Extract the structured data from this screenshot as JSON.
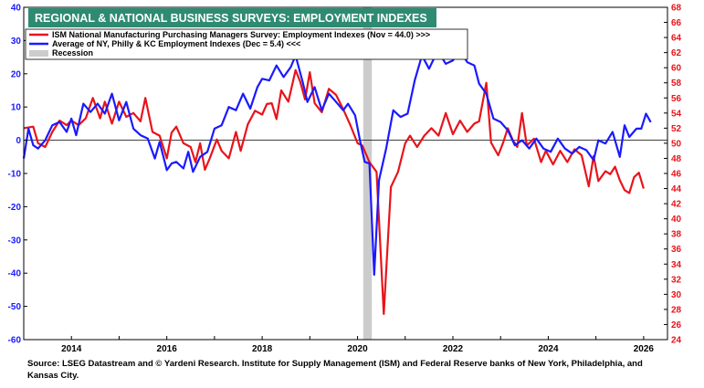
{
  "chart_data": {
    "type": "line",
    "title": "REGIONAL & NATIONAL BUSINESS SURVEYS: EMPLOYMENT INDEXES",
    "x_ticks": [
      "2014",
      "2016",
      "2018",
      "2020",
      "2022",
      "2024",
      "2026"
    ],
    "x_range": [
      2013.0,
      2026.5
    ],
    "left_axis": {
      "min": -60,
      "max": 40,
      "step": 10,
      "ticks": [
        "40",
        "30",
        "20",
        "10",
        "0",
        "-10",
        "-20",
        "-30",
        "-40",
        "-50",
        "-60"
      ],
      "color": "#1a1aff"
    },
    "right_axis": {
      "min": 24,
      "max": 68,
      "step": 2,
      "ticks": [
        "68",
        "66",
        "64",
        "62",
        "60",
        "58",
        "56",
        "54",
        "52",
        "50",
        "48",
        "46",
        "44",
        "42",
        "40",
        "38",
        "36",
        "34",
        "32",
        "30",
        "28",
        "26",
        "24"
      ],
      "color": "#e8141b"
    },
    "recession": {
      "label": "Recession",
      "start": 2020.12,
      "end": 2020.3,
      "color": "#cccccc"
    },
    "series": [
      {
        "name": "ISM National Manufacturing Purchasing Managers Survey: Employment Indexes (Nov = 44.0) >>>",
        "axis": "right",
        "color": "#e8141b",
        "points": [
          [
            2013.0,
            52
          ],
          [
            2013.2,
            52.2
          ],
          [
            2013.3,
            50
          ],
          [
            2013.45,
            49.5
          ],
          [
            2013.6,
            51.5
          ],
          [
            2013.75,
            53
          ],
          [
            2013.9,
            52.4
          ],
          [
            2014.0,
            53
          ],
          [
            2014.15,
            52.4
          ],
          [
            2014.3,
            53.3
          ],
          [
            2014.45,
            56
          ],
          [
            2014.6,
            53.3
          ],
          [
            2014.7,
            55.5
          ],
          [
            2014.85,
            52.6
          ],
          [
            2015.0,
            55.5
          ],
          [
            2015.15,
            53.5
          ],
          [
            2015.3,
            54
          ],
          [
            2015.45,
            52.9
          ],
          [
            2015.55,
            56
          ],
          [
            2015.7,
            51.5
          ],
          [
            2015.85,
            51
          ],
          [
            2016.0,
            48
          ],
          [
            2016.1,
            51.4
          ],
          [
            2016.2,
            52.2
          ],
          [
            2016.35,
            50
          ],
          [
            2016.5,
            49.5
          ],
          [
            2016.6,
            47.5
          ],
          [
            2016.7,
            50
          ],
          [
            2016.8,
            46.5
          ],
          [
            2016.9,
            48
          ],
          [
            2017.05,
            50.5
          ],
          [
            2017.15,
            49
          ],
          [
            2017.3,
            48
          ],
          [
            2017.45,
            51.5
          ],
          [
            2017.55,
            49
          ],
          [
            2017.7,
            52.5
          ],
          [
            2017.85,
            54.3
          ],
          [
            2018.0,
            53.8
          ],
          [
            2018.1,
            55.2
          ],
          [
            2018.2,
            55.3
          ],
          [
            2018.3,
            53.2
          ],
          [
            2018.4,
            57
          ],
          [
            2018.55,
            55.5
          ],
          [
            2018.7,
            59.7
          ],
          [
            2018.8,
            58.1
          ],
          [
            2018.9,
            55.8
          ],
          [
            2019.0,
            59.4
          ],
          [
            2019.1,
            55.3
          ],
          [
            2019.25,
            54.1
          ],
          [
            2019.4,
            57.2
          ],
          [
            2019.55,
            56.4
          ],
          [
            2019.7,
            54.5
          ],
          [
            2019.85,
            52.4
          ],
          [
            2020.0,
            50
          ],
          [
            2020.1,
            49.7
          ],
          [
            2020.25,
            47.5
          ],
          [
            2020.4,
            46.2
          ],
          [
            2020.55,
            27.4
          ],
          [
            2020.7,
            44.2
          ],
          [
            2020.85,
            46.2
          ],
          [
            2021.0,
            50
          ],
          [
            2021.1,
            51
          ],
          [
            2021.25,
            49.5
          ],
          [
            2021.4,
            51
          ],
          [
            2021.55,
            52
          ],
          [
            2021.7,
            51
          ],
          [
            2021.85,
            54
          ],
          [
            2022.0,
            51.2
          ],
          [
            2022.15,
            53
          ],
          [
            2022.3,
            51.5
          ],
          [
            2022.45,
            52.6
          ],
          [
            2022.55,
            52.9
          ],
          [
            2022.7,
            58
          ],
          [
            2022.8,
            50.1
          ],
          [
            2022.95,
            48.4
          ],
          [
            2023.05,
            50
          ],
          [
            2023.15,
            52
          ],
          [
            2023.25,
            50.5
          ],
          [
            2023.35,
            49.5
          ],
          [
            2023.45,
            54
          ],
          [
            2023.55,
            49.7
          ],
          [
            2023.7,
            50.6
          ],
          [
            2023.85,
            47.5
          ],
          [
            2023.95,
            49
          ],
          [
            2024.1,
            47.2
          ],
          [
            2024.25,
            49
          ],
          [
            2024.4,
            47.5
          ],
          [
            2024.55,
            49.2
          ],
          [
            2024.7,
            48.4
          ],
          [
            2024.85,
            44.3
          ],
          [
            2024.95,
            48.3
          ],
          [
            2025.05,
            45
          ],
          [
            2025.2,
            46.3
          ],
          [
            2025.3,
            45.9
          ],
          [
            2025.4,
            46.9
          ],
          [
            2025.5,
            45.1
          ],
          [
            2025.6,
            43.8
          ],
          [
            2025.7,
            43.4
          ],
          [
            2025.8,
            45.5
          ],
          [
            2025.9,
            46.1
          ],
          [
            2026.0,
            44.0
          ]
        ]
      },
      {
        "name": "Average of NY, Philly & KC Employment Indexes (Dec = 5.4) <<<",
        "axis": "left",
        "color": "#1a1aff",
        "points": [
          [
            2013.0,
            -5.5
          ],
          [
            2013.1,
            3.5
          ],
          [
            2013.2,
            -1.5
          ],
          [
            2013.3,
            -2.5
          ],
          [
            2013.45,
            0
          ],
          [
            2013.6,
            4.5
          ],
          [
            2013.75,
            5.5
          ],
          [
            2013.9,
            2.5
          ],
          [
            2014.0,
            6.5
          ],
          [
            2014.1,
            1.5
          ],
          [
            2014.25,
            11
          ],
          [
            2014.4,
            8.5
          ],
          [
            2014.55,
            11
          ],
          [
            2014.7,
            8
          ],
          [
            2014.85,
            14
          ],
          [
            2015.0,
            6
          ],
          [
            2015.15,
            11.5
          ],
          [
            2015.3,
            3.5
          ],
          [
            2015.45,
            1.5
          ],
          [
            2015.6,
            0.5
          ],
          [
            2015.75,
            -5.5
          ],
          [
            2015.85,
            -0.5
          ],
          [
            2016.0,
            -9
          ],
          [
            2016.1,
            -7
          ],
          [
            2016.2,
            -6.5
          ],
          [
            2016.35,
            -8.5
          ],
          [
            2016.45,
            -3.5
          ],
          [
            2016.55,
            -9.5
          ],
          [
            2016.7,
            -5
          ],
          [
            2016.85,
            -3.5
          ],
          [
            2017.0,
            3.5
          ],
          [
            2017.15,
            4.5
          ],
          [
            2017.3,
            10
          ],
          [
            2017.45,
            9
          ],
          [
            2017.6,
            14
          ],
          [
            2017.75,
            9.5
          ],
          [
            2017.9,
            16
          ],
          [
            2018.0,
            18.5
          ],
          [
            2018.15,
            18
          ],
          [
            2018.3,
            22.5
          ],
          [
            2018.45,
            19
          ],
          [
            2018.6,
            22
          ],
          [
            2018.7,
            25.5
          ],
          [
            2018.85,
            17.5
          ],
          [
            2018.95,
            11.5
          ],
          [
            2019.1,
            16
          ],
          [
            2019.25,
            9
          ],
          [
            2019.4,
            14
          ],
          [
            2019.55,
            11.5
          ],
          [
            2019.7,
            9
          ],
          [
            2019.8,
            11
          ],
          [
            2019.95,
            7.5
          ],
          [
            2020.05,
            0
          ],
          [
            2020.15,
            -6.5
          ],
          [
            2020.25,
            -7
          ],
          [
            2020.35,
            -40.5
          ],
          [
            2020.45,
            -12
          ],
          [
            2020.6,
            -2.5
          ],
          [
            2020.75,
            9
          ],
          [
            2020.9,
            7
          ],
          [
            2021.05,
            8
          ],
          [
            2021.2,
            18
          ],
          [
            2021.35,
            25.5
          ],
          [
            2021.5,
            21.5
          ],
          [
            2021.6,
            24.5
          ],
          [
            2021.7,
            26.5
          ],
          [
            2021.85,
            23
          ],
          [
            2022.0,
            24
          ],
          [
            2022.15,
            27
          ],
          [
            2022.3,
            23.5
          ],
          [
            2022.45,
            22.5
          ],
          [
            2022.55,
            17
          ],
          [
            2022.7,
            14
          ],
          [
            2022.85,
            6.5
          ],
          [
            2023.0,
            5.5
          ],
          [
            2023.15,
            3
          ],
          [
            2023.3,
            -1.5
          ],
          [
            2023.45,
            0
          ],
          [
            2023.6,
            -2.5
          ],
          [
            2023.75,
            0.5
          ],
          [
            2023.9,
            -2.5
          ],
          [
            2024.05,
            -3.5
          ],
          [
            2024.2,
            0.5
          ],
          [
            2024.35,
            -2.5
          ],
          [
            2024.5,
            -4
          ],
          [
            2024.65,
            -2
          ],
          [
            2024.8,
            -3
          ],
          [
            2024.95,
            -6
          ],
          [
            2025.05,
            0
          ],
          [
            2025.2,
            -1
          ],
          [
            2025.35,
            2.5
          ],
          [
            2025.5,
            -5
          ],
          [
            2025.6,
            4.5
          ],
          [
            2025.7,
            1
          ],
          [
            2025.85,
            3.5
          ],
          [
            2025.95,
            3.5
          ],
          [
            2026.05,
            8
          ],
          [
            2026.15,
            5.4
          ]
        ]
      }
    ]
  },
  "source": {
    "line1": "Source: LSEG Datastream and © Yardeni Research. Institute for Supply Management (ISM) and Federal Reserve banks of New York, Philadelphia, and",
    "line2": "Kansas City."
  }
}
